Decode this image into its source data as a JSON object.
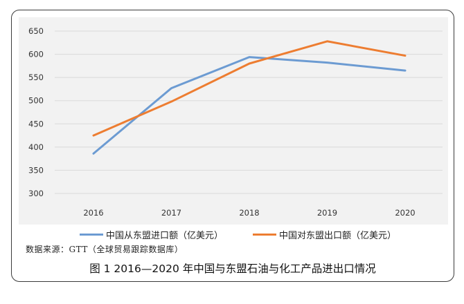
{
  "chart_data": {
    "type": "line",
    "x": [
      "2016",
      "2017",
      "2018",
      "2019",
      "2020"
    ],
    "series": [
      {
        "name": "中国从东盟进口额（亿美元）",
        "values": [
          386,
          527,
          594,
          582,
          565
        ],
        "color": "#6c9bd2"
      },
      {
        "name": "中国对东盟出口额（亿美元）",
        "values": [
          425,
          498,
          580,
          628,
          597
        ],
        "color": "#ed7d31"
      }
    ],
    "yticks": [
      "300",
      "350",
      "400",
      "450",
      "500",
      "550",
      "600",
      "650"
    ],
    "ylim": [
      300,
      650
    ],
    "grid": true,
    "legend": "bottom"
  },
  "source_note": "数据来源：GTT（全球贸易跟踪数据库）",
  "caption": "图 1  2016—2020 年中国与东盟石油与化工产品进出口情况"
}
